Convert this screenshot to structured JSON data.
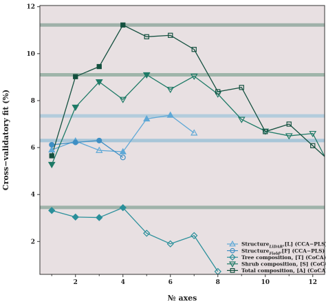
{
  "chart_data": {
    "type": "line",
    "xlabel": "№ axes",
    "ylabel": "Cross−validatory fit (%)",
    "xlim": [
      0.5,
      12.5
    ],
    "ylim": [
      0.6,
      12.05
    ],
    "xticks": [
      2,
      4,
      6,
      8,
      10,
      12
    ],
    "yticks": [
      2,
      4,
      6,
      8,
      10,
      12
    ],
    "background": "#e8e0e2",
    "reference_lines": [
      {
        "y": 11.22,
        "color": "#9fb1a9"
      },
      {
        "y": 9.1,
        "color": "#9fb5aa"
      },
      {
        "y": 7.35,
        "color": "#b3ccdc"
      },
      {
        "y": 6.3,
        "color": "#a8c6d8"
      },
      {
        "y": 3.45,
        "color": "#9fb3aa"
      }
    ],
    "series": [
      {
        "name_main": "Structure",
        "name_sub": "LiDAR",
        "name_rest": ",[L] (CCA−PLS)",
        "color": "#5fa8d6",
        "marker": "triangle-up",
        "x": [
          1,
          2,
          3,
          4,
          5,
          6,
          7
        ],
        "y": [
          5.9,
          6.28,
          5.88,
          5.82,
          7.22,
          7.38,
          6.62
        ],
        "filled": [
          true,
          true,
          false,
          true,
          true,
          true,
          false
        ]
      },
      {
        "name_main": "Structure",
        "name_sub": "Field",
        "name_rest": ",[F] (CCA−PLS)",
        "color": "#3f8fc4",
        "marker": "circle",
        "x": [
          1,
          2,
          3,
          4
        ],
        "y": [
          6.12,
          6.22,
          6.3,
          5.58
        ],
        "filled": [
          true,
          true,
          true,
          false
        ]
      },
      {
        "name_main": "Tree composition, [T] (CoCA)",
        "name_sub": "",
        "name_rest": "",
        "color": "#2a8f9a",
        "marker": "diamond",
        "x": [
          1,
          2,
          3,
          4,
          5,
          6,
          7,
          8
        ],
        "y": [
          3.32,
          3.04,
          3.02,
          3.44,
          2.35,
          1.9,
          2.25,
          0.72
        ],
        "filled": [
          true,
          true,
          true,
          true,
          false,
          false,
          false,
          false
        ]
      },
      {
        "name_main": "Shrub composition, [S] (CoCA)",
        "name_sub": "",
        "name_rest": "",
        "color": "#1e7a66",
        "marker": "triangle-down",
        "x": [
          1,
          2,
          3,
          4,
          5,
          6,
          7,
          8,
          9,
          10,
          11,
          12,
          12.5
        ],
        "y": [
          5.28,
          7.72,
          8.8,
          8.05,
          9.1,
          8.48,
          9.04,
          8.28,
          7.2,
          6.7,
          6.5,
          6.6,
          5.62
        ],
        "filled": [
          true,
          true,
          true,
          false,
          true,
          false,
          false,
          false,
          false,
          false,
          false,
          false,
          false
        ]
      },
      {
        "name_main": "Total composition, [A] (CoCA)",
        "name_sub": "",
        "name_rest": "",
        "color": "#14503f",
        "marker": "square",
        "x": [
          1,
          2,
          3,
          4,
          5,
          6,
          7,
          8,
          9,
          10,
          11,
          12,
          12.5
        ],
        "y": [
          5.65,
          9.02,
          9.45,
          11.22,
          10.72,
          10.78,
          10.18,
          8.38,
          8.56,
          6.68,
          7.0,
          6.08,
          5.62
        ],
        "filled": [
          true,
          true,
          true,
          true,
          false,
          false,
          false,
          false,
          false,
          false,
          false,
          false,
          false
        ]
      }
    ],
    "legend_position": "bottom-right"
  }
}
